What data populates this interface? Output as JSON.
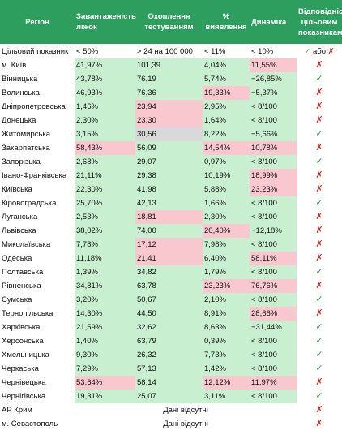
{
  "headers": {
    "region": "Регіон",
    "load": "Завантаженість ліжок",
    "coverage": "Охоплення тестуванням",
    "detection": "% виявлення",
    "dynamics": "Динаміка",
    "compliance": "Відповідність цільовим показникам"
  },
  "target": {
    "label": "Цільовий показник",
    "load": "< 50%",
    "coverage": "> 24 на 100 000",
    "detection": "< 11%",
    "dynamics": "< 10%",
    "compliance_tick": "✓",
    "compliance_or": "або",
    "compliance_cross": "✗"
  },
  "colors": {
    "header_bg": "#2e9e5e",
    "ok_bg": "#c8efd0",
    "bad_bg": "#f9c7ce",
    "neutral_bg": "#d9d9d9",
    "tick": "#21a336",
    "cross": "#e0261b"
  },
  "rows": [
    {
      "region": "м. Київ",
      "load": "41,97%",
      "load_s": "ok",
      "coverage": "101,39",
      "coverage_s": "ok",
      "detection": "4,04%",
      "detection_s": "ok",
      "dynamics": "11,55%",
      "dynamics_s": "bad",
      "mark": "✗"
    },
    {
      "region": "Вінницька",
      "load": "43,78%",
      "load_s": "ok",
      "coverage": "76,19",
      "coverage_s": "ok",
      "detection": "5,74%",
      "detection_s": "ok",
      "dynamics": "−26,85%",
      "dynamics_s": "ok",
      "mark": "✓"
    },
    {
      "region": "Волинська",
      "load": "46,93%",
      "load_s": "ok",
      "coverage": "76,36",
      "coverage_s": "ok",
      "detection": "19,33%",
      "detection_s": "bad",
      "dynamics": "−5,37%",
      "dynamics_s": "ok",
      "mark": "✗"
    },
    {
      "region": "Дніпропетровська",
      "load": "1,46%",
      "load_s": "ok",
      "coverage": "23,94",
      "coverage_s": "bad",
      "detection": "2,95%",
      "detection_s": "ok",
      "dynamics": "< 8/100",
      "dynamics_s": "ok",
      "mark": "✗"
    },
    {
      "region": "Донецька",
      "load": "2,30%",
      "load_s": "ok",
      "coverage": "23,30",
      "coverage_s": "bad",
      "detection": "1,64%",
      "detection_s": "ok",
      "dynamics": "< 8/100",
      "dynamics_s": "ok",
      "mark": "✗"
    },
    {
      "region": "Житомирська",
      "load": "3,15%",
      "load_s": "ok",
      "coverage": "30,56",
      "coverage_s": "neutral",
      "detection": "8,22%",
      "detection_s": "ok",
      "dynamics": "−5,66%",
      "dynamics_s": "ok",
      "mark": "✓"
    },
    {
      "region": "Закарпатська",
      "load": "58,43%",
      "load_s": "bad",
      "coverage": "56,09",
      "coverage_s": "ok",
      "detection": "14,54%",
      "detection_s": "bad",
      "dynamics": "10,78%",
      "dynamics_s": "bad",
      "mark": "✗"
    },
    {
      "region": "Запорізька",
      "load": "2,68%",
      "load_s": "ok",
      "coverage": "29,07",
      "coverage_s": "ok",
      "detection": "0,97%",
      "detection_s": "ok",
      "dynamics": "< 8/100",
      "dynamics_s": "ok",
      "mark": "✓"
    },
    {
      "region": "Івано-Франківська",
      "load": "21,11%",
      "load_s": "ok",
      "coverage": "29,38",
      "coverage_s": "ok",
      "detection": "10,19%",
      "detection_s": "ok",
      "dynamics": "18,99%",
      "dynamics_s": "bad",
      "mark": "✗"
    },
    {
      "region": "Київська",
      "load": "22,30%",
      "load_s": "ok",
      "coverage": "41,98",
      "coverage_s": "ok",
      "detection": "5,88%",
      "detection_s": "ok",
      "dynamics": "23,23%",
      "dynamics_s": "bad",
      "mark": "✗"
    },
    {
      "region": "Кіровоградська",
      "load": "25,70%",
      "load_s": "ok",
      "coverage": "42,13",
      "coverage_s": "ok",
      "detection": "1,66%",
      "detection_s": "ok",
      "dynamics": "< 8/100",
      "dynamics_s": "ok",
      "mark": "✓"
    },
    {
      "region": "Луганська",
      "load": "2,53%",
      "load_s": "ok",
      "coverage": "18,81",
      "coverage_s": "bad",
      "detection": "2,30%",
      "detection_s": "ok",
      "dynamics": "< 8/100",
      "dynamics_s": "ok",
      "mark": "✗"
    },
    {
      "region": "Львівська",
      "load": "38,02%",
      "load_s": "ok",
      "coverage": "74,00",
      "coverage_s": "ok",
      "detection": "20,40%",
      "detection_s": "bad",
      "dynamics": "−12,18%",
      "dynamics_s": "ok",
      "mark": "✗"
    },
    {
      "region": "Миколаївська",
      "load": "7,78%",
      "load_s": "ok",
      "coverage": "17,12",
      "coverage_s": "bad",
      "detection": "7,98%",
      "detection_s": "ok",
      "dynamics": "< 8/100",
      "dynamics_s": "ok",
      "mark": "✗"
    },
    {
      "region": "Одеська",
      "load": "11,18%",
      "load_s": "ok",
      "coverage": "21,41",
      "coverage_s": "bad",
      "detection": "6,40%",
      "detection_s": "ok",
      "dynamics": "58,11%",
      "dynamics_s": "bad",
      "mark": "✗"
    },
    {
      "region": "Полтавська",
      "load": "1,39%",
      "load_s": "ok",
      "coverage": "34,82",
      "coverage_s": "ok",
      "detection": "1,79%",
      "detection_s": "ok",
      "dynamics": "< 8/100",
      "dynamics_s": "ok",
      "mark": "✓"
    },
    {
      "region": "Рівненська",
      "load": "34,81%",
      "load_s": "ok",
      "coverage": "63,78",
      "coverage_s": "ok",
      "detection": "23,23%",
      "detection_s": "bad",
      "dynamics": "76,76%",
      "dynamics_s": "bad",
      "mark": "✗"
    },
    {
      "region": "Сумська",
      "load": "3,20%",
      "load_s": "ok",
      "coverage": "50,67",
      "coverage_s": "ok",
      "detection": "2,10%",
      "detection_s": "ok",
      "dynamics": "< 8/100",
      "dynamics_s": "ok",
      "mark": "✓"
    },
    {
      "region": "Тернопільська",
      "load": "14,30%",
      "load_s": "ok",
      "coverage": "44,50",
      "coverage_s": "ok",
      "detection": "8,91%",
      "detection_s": "ok",
      "dynamics": "28,66%",
      "dynamics_s": "bad",
      "mark": "✗"
    },
    {
      "region": "Харківська",
      "load": "21,59%",
      "load_s": "ok",
      "coverage": "32,62",
      "coverage_s": "ok",
      "detection": "8,63%",
      "detection_s": "ok",
      "dynamics": "−31,44%",
      "dynamics_s": "ok",
      "mark": "✓"
    },
    {
      "region": "Херсонська",
      "load": "1,40%",
      "load_s": "ok",
      "coverage": "63,79",
      "coverage_s": "ok",
      "detection": "0,39%",
      "detection_s": "ok",
      "dynamics": "< 8/100",
      "dynamics_s": "ok",
      "mark": "✓"
    },
    {
      "region": "Хмельницька",
      "load": "9,30%",
      "load_s": "ok",
      "coverage": "26,32",
      "coverage_s": "ok",
      "detection": "7,73%",
      "detection_s": "ok",
      "dynamics": "< 8/100",
      "dynamics_s": "ok",
      "mark": "✓"
    },
    {
      "region": "Черкаська",
      "load": "7,29%",
      "load_s": "ok",
      "coverage": "57,13",
      "coverage_s": "ok",
      "detection": "1,42%",
      "detection_s": "ok",
      "dynamics": "< 8/100",
      "dynamics_s": "ok",
      "mark": "✓"
    },
    {
      "region": "Чернівецька",
      "load": "53,64%",
      "load_s": "bad",
      "coverage": "58,14",
      "coverage_s": "ok",
      "detection": "12,12%",
      "detection_s": "bad",
      "dynamics": "11,97%",
      "dynamics_s": "bad",
      "mark": "✗"
    },
    {
      "region": "Чернігівська",
      "load": "19,31%",
      "load_s": "ok",
      "coverage": "25,07",
      "coverage_s": "ok",
      "detection": "3,11%",
      "detection_s": "ok",
      "dynamics": "< 8/100",
      "dynamics_s": "ok",
      "mark": "✓"
    }
  ],
  "nodata_rows": [
    {
      "region": "АР Крим",
      "text": "Дані відсутні",
      "mark": "✗"
    },
    {
      "region": "м. Севастополь",
      "text": "Дані відсутні",
      "mark": "✗"
    }
  ]
}
